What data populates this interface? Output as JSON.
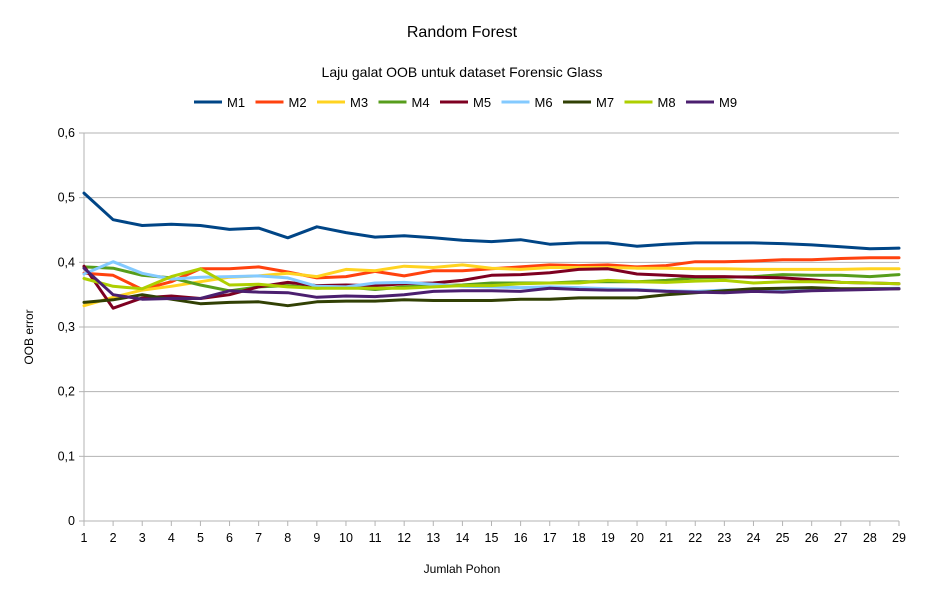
{
  "chart_data": {
    "type": "line",
    "title": "Random Forest",
    "subtitle": "Laju galat OOB untuk dataset Forensic Glass",
    "xlabel": "Jumlah Pohon",
    "ylabel": "OOB error",
    "ylim": [
      0,
      0.6
    ],
    "yticks": [
      "0",
      "0,1",
      "0,2",
      "0,3",
      "0,4",
      "0,5",
      "0,6"
    ],
    "x": [
      1,
      2,
      3,
      4,
      5,
      6,
      7,
      8,
      9,
      10,
      11,
      12,
      13,
      14,
      15,
      16,
      17,
      18,
      19,
      20,
      21,
      22,
      23,
      24,
      25,
      26,
      27,
      28,
      29
    ],
    "grid": "horizontal",
    "legend_position": "top",
    "series": [
      {
        "name": "M1",
        "color": "#004586",
        "values": [
          0.507,
          0.466,
          0.457,
          0.459,
          0.457,
          0.451,
          0.453,
          0.438,
          0.455,
          0.446,
          0.439,
          0.441,
          0.438,
          0.434,
          0.432,
          0.435,
          0.428,
          0.43,
          0.43,
          0.425,
          0.428,
          0.43,
          0.43,
          0.43,
          0.429,
          0.427,
          0.424,
          0.421,
          0.422
        ]
      },
      {
        "name": "M2",
        "color": "#ff420e",
        "values": [
          0.383,
          0.38,
          0.358,
          0.37,
          0.39,
          0.39,
          0.393,
          0.385,
          0.376,
          0.378,
          0.386,
          0.379,
          0.387,
          0.387,
          0.39,
          0.393,
          0.396,
          0.395,
          0.396,
          0.393,
          0.395,
          0.401,
          0.401,
          0.402,
          0.404,
          0.404,
          0.406,
          0.407,
          0.407
        ]
      },
      {
        "name": "M3",
        "color": "#ffd320",
        "values": [
          0.333,
          0.346,
          0.357,
          0.363,
          0.37,
          0.377,
          0.379,
          0.383,
          0.378,
          0.389,
          0.387,
          0.394,
          0.392,
          0.396,
          0.391,
          0.389,
          0.392,
          0.392,
          0.392,
          0.391,
          0.391,
          0.39,
          0.39,
          0.389,
          0.389,
          0.389,
          0.389,
          0.39,
          0.39
        ]
      },
      {
        "name": "M4",
        "color": "#579d1c",
        "values": [
          0.393,
          0.391,
          0.38,
          0.376,
          0.365,
          0.356,
          0.362,
          0.364,
          0.36,
          0.362,
          0.358,
          0.362,
          0.364,
          0.365,
          0.368,
          0.368,
          0.368,
          0.37,
          0.37,
          0.37,
          0.372,
          0.376,
          0.377,
          0.378,
          0.381,
          0.38,
          0.38,
          0.378,
          0.381
        ]
      },
      {
        "name": "M5",
        "color": "#7e0021",
        "values": [
          0.394,
          0.329,
          0.345,
          0.348,
          0.344,
          0.35,
          0.362,
          0.369,
          0.364,
          0.365,
          0.364,
          0.367,
          0.368,
          0.372,
          0.38,
          0.381,
          0.384,
          0.389,
          0.39,
          0.382,
          0.38,
          0.378,
          0.378,
          0.377,
          0.376,
          0.373,
          0.369,
          0.368,
          0.367
        ]
      },
      {
        "name": "M6",
        "color": "#83caff",
        "values": [
          0.382,
          0.401,
          0.383,
          0.374,
          0.377,
          0.378,
          0.379,
          0.376,
          0.363,
          0.362,
          0.368,
          0.369,
          0.366,
          0.363,
          0.362,
          0.361,
          0.362,
          0.361,
          0.359,
          0.358,
          0.356,
          0.355,
          0.357,
          0.357,
          0.358,
          0.357,
          0.358,
          0.359,
          0.36
        ]
      },
      {
        "name": "M7",
        "color": "#314004",
        "values": [
          0.338,
          0.342,
          0.35,
          0.343,
          0.336,
          0.338,
          0.339,
          0.333,
          0.339,
          0.34,
          0.34,
          0.342,
          0.341,
          0.341,
          0.341,
          0.343,
          0.343,
          0.345,
          0.345,
          0.345,
          0.35,
          0.353,
          0.356,
          0.359,
          0.36,
          0.361,
          0.359,
          0.359,
          0.359
        ]
      },
      {
        "name": "M8",
        "color": "#aecf00",
        "values": [
          0.375,
          0.363,
          0.359,
          0.378,
          0.39,
          0.365,
          0.366,
          0.362,
          0.36,
          0.36,
          0.36,
          0.36,
          0.362,
          0.364,
          0.364,
          0.367,
          0.368,
          0.368,
          0.372,
          0.37,
          0.369,
          0.371,
          0.372,
          0.368,
          0.37,
          0.37,
          0.369,
          0.368,
          0.367
        ]
      },
      {
        "name": "M9",
        "color": "#4b1f6f",
        "values": [
          0.391,
          0.35,
          0.343,
          0.344,
          0.344,
          0.356,
          0.354,
          0.353,
          0.346,
          0.348,
          0.347,
          0.35,
          0.355,
          0.356,
          0.356,
          0.355,
          0.36,
          0.358,
          0.357,
          0.357,
          0.355,
          0.354,
          0.353,
          0.355,
          0.354,
          0.356,
          0.357,
          0.358,
          0.359
        ]
      }
    ]
  }
}
